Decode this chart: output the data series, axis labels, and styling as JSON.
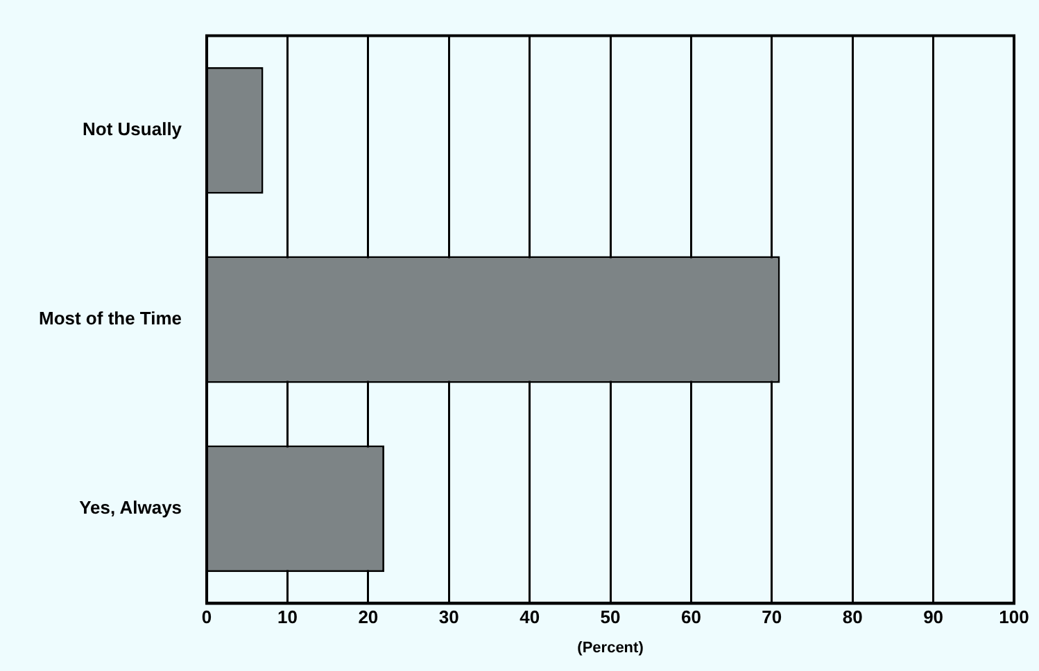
{
  "chart_data": {
    "type": "bar",
    "orientation": "horizontal",
    "xlabel": "(Percent)",
    "categories": [
      "Not Usually",
      "Most of the Time",
      "Yes, Always"
    ],
    "values": [
      7,
      71,
      22
    ],
    "color": "#7d8486",
    "xlim": [
      0,
      100
    ],
    "xticks": [
      0,
      10,
      20,
      30,
      40,
      50,
      60,
      70,
      80,
      90,
      100
    ],
    "grid": "x"
  }
}
